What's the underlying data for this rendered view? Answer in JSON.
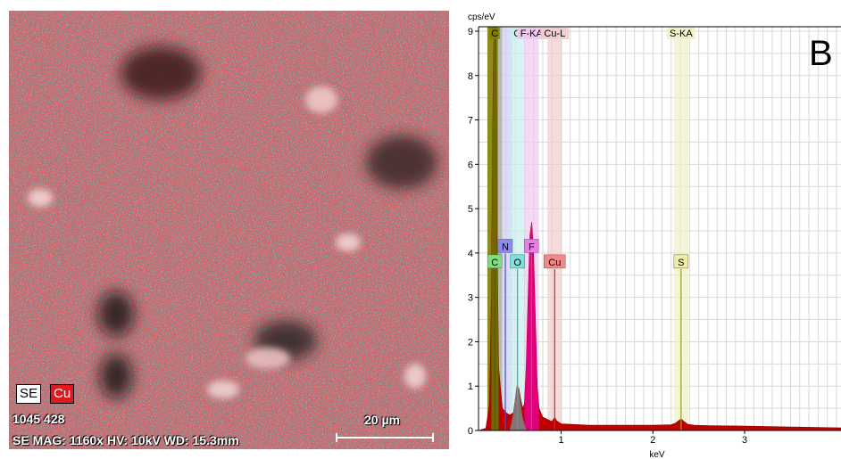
{
  "sem_panel": {
    "badges": {
      "se": "SE",
      "cu": "Cu"
    },
    "image_id": "1045 428",
    "meta": "SE  MAG: 1160x  HV: 10kV  WD: 15.3mm",
    "scalebar_label": "20 µm",
    "colors": {
      "map": "#e0191e",
      "se_badge": "#ffffff",
      "cu_badge": "#e0191e"
    }
  },
  "chart_data": {
    "type": "area",
    "panel_letter": "B",
    "ylabel": "cps/eV",
    "xlabel": "keV",
    "xlim": [
      0.1,
      4.05
    ],
    "ylim": [
      0,
      9.1
    ],
    "x_ticks": [
      1,
      2,
      3
    ],
    "y_ticks": [
      0,
      1,
      2,
      3,
      4,
      5,
      6,
      7,
      8,
      9
    ],
    "grid": true,
    "spectrum": {
      "x": [
        0.1,
        0.18,
        0.22,
        0.24,
        0.26,
        0.27,
        0.28,
        0.29,
        0.3,
        0.32,
        0.36,
        0.4,
        0.44,
        0.48,
        0.5,
        0.52,
        0.54,
        0.56,
        0.58,
        0.6,
        0.62,
        0.64,
        0.66,
        0.68,
        0.7,
        0.72,
        0.74,
        0.76,
        0.8,
        0.85,
        0.9,
        0.93,
        0.95,
        1.0,
        1.1,
        1.3,
        1.5,
        1.8,
        2.0,
        2.2,
        2.25,
        2.28,
        2.31,
        2.34,
        2.38,
        2.45,
        2.6,
        3.0,
        3.5,
        4.05
      ],
      "y": [
        0.0,
        0.05,
        0.6,
        3.0,
        8.0,
        9.1,
        9.1,
        9.1,
        4.5,
        1.4,
        0.5,
        0.4,
        0.35,
        0.4,
        0.7,
        1.0,
        0.95,
        0.7,
        0.5,
        0.6,
        1.5,
        3.0,
        4.4,
        4.7,
        4.0,
        2.5,
        1.0,
        0.5,
        0.3,
        0.25,
        0.2,
        0.3,
        0.22,
        0.15,
        0.14,
        0.12,
        0.12,
        0.12,
        0.12,
        0.13,
        0.17,
        0.22,
        0.26,
        0.2,
        0.14,
        0.12,
        0.11,
        0.1,
        0.08,
        0.06
      ]
    },
    "overlay_peak": {
      "x": [
        0.44,
        0.48,
        0.5,
        0.52,
        0.54,
        0.56,
        0.58,
        0.62
      ],
      "y": [
        0.0,
        0.4,
        0.75,
        1.0,
        0.95,
        0.6,
        0.3,
        0.0
      ]
    },
    "elements": [
      {
        "label": "C",
        "line": "C",
        "band_label": "C",
        "energy": 0.277,
        "marker_y": 3.8,
        "color": "#7fdc7f",
        "band_color": "#808000",
        "line_color": "#5a5a00"
      },
      {
        "label": "N",
        "line": "N",
        "band_label": "",
        "energy": 0.392,
        "marker_y": 4.15,
        "color": "#8a8af0",
        "band_color": "#cccff0",
        "line_color": "#5050c0"
      },
      {
        "label": "O",
        "line": "O",
        "band_label": "O",
        "energy": 0.525,
        "marker_y": 3.8,
        "color": "#7fe0e0",
        "band_color": "#c8eeee",
        "line_color": "#30b0b0"
      },
      {
        "label": "F",
        "line": "F",
        "band_label": "F-KA",
        "energy": 0.677,
        "marker_y": 4.15,
        "color": "#e67ee6",
        "band_color": "#f0c8f0",
        "line_color": "#c040c0"
      },
      {
        "label": "Cu",
        "line": "Cu-L",
        "band_label": "Cu-L",
        "energy": 0.93,
        "marker_y": 3.8,
        "color": "#f08a8a",
        "band_color": "#f2cccc",
        "line_color": "#c03030"
      },
      {
        "label": "S",
        "line": "S-KA",
        "band_label": "S-KA",
        "energy": 2.307,
        "marker_y": 3.8,
        "color": "#f0f0a0",
        "band_color": "#f0f0c8",
        "line_color": "#a0a020"
      }
    ],
    "colors": {
      "spectrum_fill": "#c00000",
      "spectrum_peak_fill": "#e0007a",
      "overlay_fill": "#808080",
      "grid": "#d8d8d8",
      "frame": "#000000"
    }
  }
}
